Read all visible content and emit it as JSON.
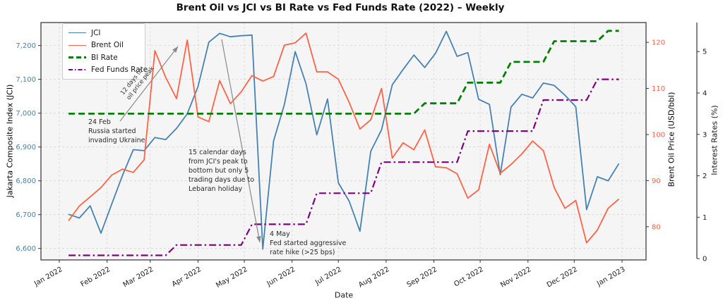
{
  "title": "Brent Oil vs JCI vs BI Rate vs Fed Funds Rate (2022) – Weekly",
  "xlabel": "Date",
  "annotations": {
    "russia": "24 Feb\nRussia started\ninvading Ukraine",
    "oil_peak_arrow_label": "12 days to\noil price peak",
    "lebaran": "15 calendar days\nfrom JCI's peak to\nbottom but only 5\ntrading days due to\nLebaran holiday",
    "fed_hike": "4 May\nFed started aggressive\nrate hike (>25 bps)"
  },
  "chart_data": {
    "type": "line",
    "title": "Brent Oil vs JCI vs BI Rate vs Fed Funds Rate (2022) – Weekly",
    "xlabel": "Date",
    "grid": "dashed",
    "legend_position": "upper-left",
    "x_tick_labels": [
      "Jan 2022",
      "Feb 2022",
      "Mar 2022",
      "Apr 2022",
      "May 2022",
      "Jun 2022",
      "Jul 2022",
      "Aug 2022",
      "Sep 2022",
      "Oct 2022",
      "Nov 2022",
      "Dec 2022",
      "Jan 2023"
    ],
    "x_weekly_dates": [
      "2022-01-07",
      "2022-01-14",
      "2022-01-21",
      "2022-01-28",
      "2022-02-04",
      "2022-02-11",
      "2022-02-18",
      "2022-02-25",
      "2022-03-04",
      "2022-03-11",
      "2022-03-18",
      "2022-03-25",
      "2022-04-01",
      "2022-04-08",
      "2022-04-14",
      "2022-04-22",
      "2022-04-28",
      "2022-05-06",
      "2022-05-13",
      "2022-05-20",
      "2022-05-27",
      "2022-06-03",
      "2022-06-10",
      "2022-06-17",
      "2022-06-24",
      "2022-07-01",
      "2022-07-08",
      "2022-07-15",
      "2022-07-22",
      "2022-07-29",
      "2022-08-05",
      "2022-08-12",
      "2022-08-19",
      "2022-08-26",
      "2022-09-02",
      "2022-09-09",
      "2022-09-16",
      "2022-09-23",
      "2022-09-30",
      "2022-10-07",
      "2022-10-14",
      "2022-10-21",
      "2022-10-28",
      "2022-11-04",
      "2022-11-11",
      "2022-11-18",
      "2022-11-25",
      "2022-12-02",
      "2022-12-09",
      "2022-12-16",
      "2022-12-23",
      "2022-12-30"
    ],
    "series": [
      {
        "name": "JCI",
        "axis": "jci",
        "color": "#4682b4",
        "style": "solid",
        "values": [
          6701,
          6690,
          6726,
          6645,
          6731,
          6816,
          6892,
          6889,
          6928,
          6922,
          6955,
          6998,
          7079,
          7210,
          7236,
          7226,
          7229,
          7231,
          6598,
          6918,
          7026,
          7182,
          7087,
          6936,
          7042,
          6794,
          6740,
          6651,
          6887,
          6951,
          7084,
          7129,
          7172,
          7135,
          7177,
          7242,
          7168,
          7179,
          7041,
          7026,
          6818,
          7018,
          7056,
          7045,
          7089,
          7082,
          7053,
          7019,
          6715,
          6812,
          6800,
          6851
        ]
      },
      {
        "name": "Brent Oil",
        "axis": "brent",
        "color": "#ff6347",
        "style": "solid",
        "values": [
          81.3,
          84.5,
          86.5,
          88.5,
          91.2,
          92.5,
          91.8,
          94.5,
          118.2,
          112.4,
          107.8,
          120.5,
          103.8,
          102.8,
          111.7,
          106.7,
          109.3,
          112.8,
          111.6,
          112.6,
          119.4,
          119.9,
          122.0,
          113.6,
          113.6,
          112.0,
          107.0,
          101.2,
          103.2,
          110.0,
          94.9,
          98.2,
          96.7,
          101.0,
          93.0,
          92.8,
          91.5,
          86.2,
          88.0,
          97.9,
          91.6,
          93.5,
          95.8,
          98.6,
          96.5,
          88.5,
          84.0,
          85.7,
          76.5,
          79.3,
          84.0,
          86.0
        ]
      },
      {
        "name": "BI Rate",
        "axis": "rate",
        "color": "#008000",
        "style": "dashed",
        "values": [
          3.5,
          3.5,
          3.5,
          3.5,
          3.5,
          3.5,
          3.5,
          3.5,
          3.5,
          3.5,
          3.5,
          3.5,
          3.5,
          3.5,
          3.5,
          3.5,
          3.5,
          3.5,
          3.5,
          3.5,
          3.5,
          3.5,
          3.5,
          3.5,
          3.5,
          3.5,
          3.5,
          3.5,
          3.5,
          3.5,
          3.5,
          3.5,
          3.5,
          3.75,
          3.75,
          3.75,
          3.75,
          4.25,
          4.25,
          4.25,
          4.25,
          4.75,
          4.75,
          4.75,
          4.75,
          5.25,
          5.25,
          5.25,
          5.25,
          5.25,
          5.5,
          5.5
        ]
      },
      {
        "name": "Fed Funds Rate",
        "axis": "rate",
        "color": "#800080",
        "style": "dashdot",
        "values": [
          0.08,
          0.08,
          0.08,
          0.08,
          0.08,
          0.08,
          0.08,
          0.08,
          0.08,
          0.08,
          0.33,
          0.33,
          0.33,
          0.33,
          0.33,
          0.33,
          0.33,
          0.83,
          0.83,
          0.83,
          0.83,
          0.83,
          0.83,
          1.58,
          1.58,
          1.58,
          1.58,
          1.58,
          1.58,
          2.33,
          2.33,
          2.33,
          2.33,
          2.33,
          2.33,
          2.33,
          2.33,
          3.08,
          3.08,
          3.08,
          3.08,
          3.08,
          3.08,
          3.08,
          3.83,
          3.83,
          3.83,
          3.83,
          3.83,
          4.33,
          4.33,
          4.33
        ]
      }
    ],
    "axes": {
      "jci": {
        "label": "Jakarta Composite Index (JCI)",
        "color": "#4682b4",
        "position": "left",
        "ticks": [
          "6,600",
          "6,700",
          "6,800",
          "6,900",
          "7,000",
          "7,100",
          "7,200"
        ],
        "tick_values": [
          6600,
          6700,
          6800,
          6900,
          7000,
          7100,
          7200
        ],
        "range": [
          6566,
          7268
        ]
      },
      "brent": {
        "label": "Brent Oil Price (USD/bbl)",
        "color": "#f4604a",
        "position": "right",
        "ticks": [
          "80",
          "90",
          "100",
          "110",
          "120"
        ],
        "tick_values": [
          80,
          90,
          100,
          110,
          120
        ],
        "range": [
          72.8,
          124.3
        ]
      },
      "rate": {
        "label": "Interest Rates (%)",
        "color": "#1a1a1a",
        "position": "far-right",
        "ticks": [
          "0",
          "1",
          "2",
          "3",
          "4",
          "5"
        ],
        "tick_values": [
          0,
          1,
          2,
          3,
          4,
          5
        ],
        "range": [
          -0.03,
          5.7
        ]
      }
    }
  }
}
